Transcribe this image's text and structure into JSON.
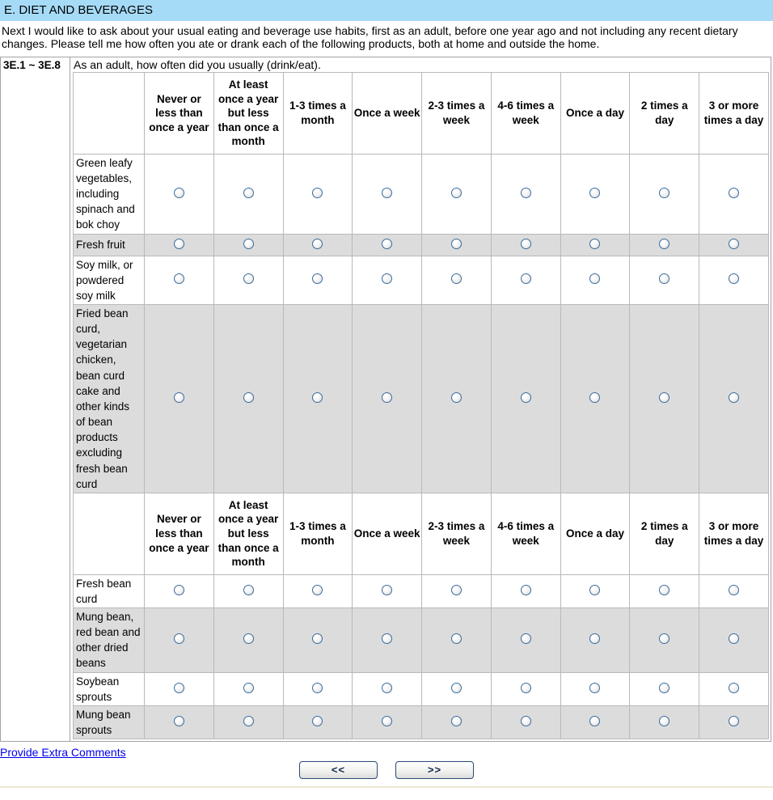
{
  "header": {
    "title": "E. DIET AND BEVERAGES"
  },
  "intro": "Next I would like to ask about your usual eating and beverage use habits, first as an adult, before one year ago and not including any recent dietary changes. Please tell me how often you ate or drank each of the following products, both at home and outside the home.",
  "question": {
    "number": "3E.1 ~ 3E.8",
    "prompt": "As an adult, how often did you usually (drink/eat)."
  },
  "matrix": {
    "columns": [
      "Never or less than once a year",
      "At least once a year but less than once a month",
      "1-3 times a month",
      "Once a week",
      "2-3 times a week",
      "4-6 times a week",
      "Once a day",
      "2 times a day",
      "3 or more times a day"
    ],
    "sections": [
      {
        "rows": [
          {
            "label": "Green leafy vegetables, including spinach and bok choy",
            "shaded": false,
            "selected": null
          },
          {
            "label": "Fresh fruit",
            "shaded": true,
            "selected": null
          },
          {
            "label": "Soy milk, or powdered soy milk",
            "shaded": false,
            "selected": null
          },
          {
            "label": "Fried bean curd, vegetarian chicken, bean curd cake and other kinds of bean products excluding fresh bean curd",
            "shaded": true,
            "selected": null
          }
        ]
      },
      {
        "rows": [
          {
            "label": "Fresh bean curd",
            "shaded": false,
            "selected": null
          },
          {
            "label": "Mung bean, red bean and other dried beans",
            "shaded": true,
            "selected": null
          },
          {
            "label": "Soybean sprouts",
            "shaded": false,
            "selected": null
          },
          {
            "label": "Mung bean sprouts",
            "shaded": true,
            "selected": null
          }
        ]
      }
    ]
  },
  "footer": {
    "comments_link": "Provide Extra Comments",
    "back_button": "<<",
    "next_button": ">>"
  },
  "colors": {
    "header_bg": "#A6DBF7",
    "shaded_row": "#DCDCDC",
    "radio_ring": "#3A6B9C",
    "link": "#0000EE",
    "bottom_rule": "#EDE8D2",
    "button_border": "#29497B"
  }
}
